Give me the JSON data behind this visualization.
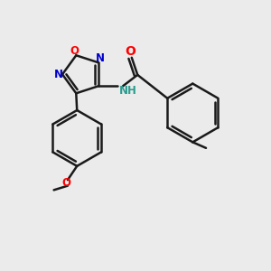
{
  "bg_color": "#ebebeb",
  "bond_color": "#1a1a1a",
  "lw": 1.8,
  "figsize": [
    3.0,
    3.0
  ],
  "dpi": 100,
  "xlim": [
    0,
    10
  ],
  "ylim": [
    0,
    10
  ],
  "O_color": "#ff0000",
  "N_color": "#0000cc",
  "NH_color": "#2a9d8f",
  "C_color": "#1a1a1a"
}
